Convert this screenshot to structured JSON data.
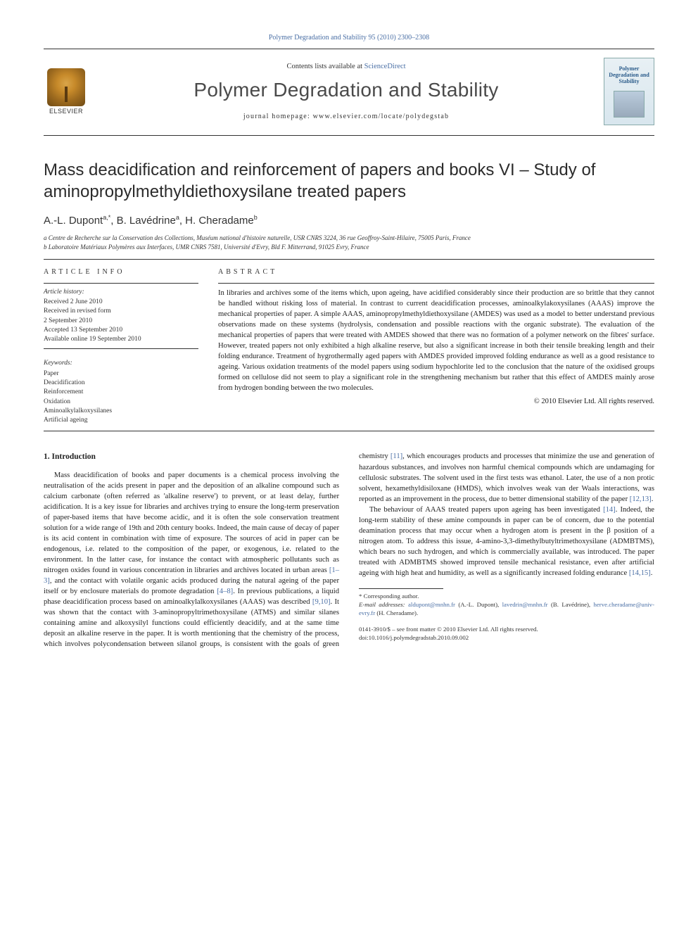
{
  "citation": "Polymer Degradation and Stability 95 (2010) 2300–2308",
  "header": {
    "contents_prefix": "Contents lists available at ",
    "contents_link": "ScienceDirect",
    "journal_name": "Polymer Degradation and Stability",
    "homepage_label": "journal homepage: www.elsevier.com/locate/polydegstab",
    "publisher_word": "ELSEVIER",
    "cover_title": "Polymer Degradation and Stability"
  },
  "article": {
    "title": "Mass deacidification and reinforcement of papers and books VI – Study of aminopropylmethyldiethoxysilane treated papers",
    "authors_html": "A.-L. Dupont",
    "author_sups": {
      "a1": "a,*",
      "a2": "a",
      "a3": "b"
    },
    "authors": {
      "a1": "A.-L. Dupont",
      "a2": "B. Lavédrine",
      "a3": "H. Cheradame"
    },
    "affiliations": {
      "a": "a Centre de Recherche sur la Conservation des Collections, Muséum national d'histoire naturelle, USR CNRS 3224, 36 rue Geoffroy-Saint-Hilaire, 75005 Paris, France",
      "b": "b Laboratoire Matériaux Polymères aux Interfaces, UMR CNRS 7581, Université d'Evry, Bld F. Mitterrand, 91025 Evry, France"
    }
  },
  "info": {
    "heading": "ARTICLE INFO",
    "history_label": "Article history:",
    "history": {
      "received": "Received 2 June 2010",
      "revised1": "Received in revised form",
      "revised2": "2 September 2010",
      "accepted": "Accepted 13 September 2010",
      "online": "Available online 19 September 2010"
    },
    "keywords_label": "Keywords:",
    "keywords": [
      "Paper",
      "Deacidification",
      "Reinforcement",
      "Oxidation",
      "Aminoalkylalkoxysilanes",
      "Artificial ageing"
    ]
  },
  "abstract": {
    "heading": "ABSTRACT",
    "text": "In libraries and archives some of the items which, upon ageing, have acidified considerably since their production are so brittle that they cannot be handled without risking loss of material. In contrast to current deacidification processes, aminoalkylakoxysilanes (AAAS) improve the mechanical properties of paper. A simple AAAS, aminopropylmethyldiethoxysilane (AMDES) was used as a model to better understand previous observations made on these systems (hydrolysis, condensation and possible reactions with the organic substrate). The evaluation of the mechanical properties of papers that were treated with AMDES showed that there was no formation of a polymer network on the fibres' surface. However, treated papers not only exhibited a high alkaline reserve, but also a significant increase in both their tensile breaking length and their folding endurance. Treatment of hygrothermally aged papers with AMDES provided improved folding endurance as well as a good resistance to ageing. Various oxidation treatments of the model papers using sodium hypochlorite led to the conclusion that the nature of the oxidised groups formed on cellulose did not seem to play a significant role in the strengthening mechanism but rather that this effect of AMDES mainly arose from hydrogen bonding between the two molecules.",
    "copyright": "© 2010 Elsevier Ltd. All rights reserved."
  },
  "body": {
    "section_heading": "1.  Introduction",
    "para1": "Mass deacidification of books and paper documents is a chemical process involving the neutralisation of the acids present in paper and the deposition of an alkaline compound such as calcium carbonate (often referred as 'alkaline reserve') to prevent, or at least delay, further acidification. It is a key issue for libraries and archives trying to ensure the long-term preservation of paper-based items that have become acidic, and it is often the sole conservation treatment solution for a wide range of 19th and 20th century books. Indeed, the main cause of decay of paper is its acid content in combination with time of exposure. The sources of acid in paper can be endogenous, i.e. related to the composition of the paper, or exogenous, i.e. related to the environment. In the latter case, for instance the contact with atmospheric pollutants such as nitrogen oxides found in various concentration in libraries and archives located in urban areas ",
    "ref1": "[1–3]",
    "para1b": ", and the contact with volatile organic acids produced during the natural ageing of the paper itself or by enclosure materials do promote degradation ",
    "ref2": "[4–8]",
    "para1c": ". In previous publications, a liquid phase deacidification process based on aminoalkylalkoxysilanes (AAAS) ",
    "para2a": "was described ",
    "ref3": "[9,10]",
    "para2b": ". It was shown that the contact with 3-aminopropyltrimethoxysilane (ATMS) and similar silanes containing amine and alkoxysilyl functions could efficiently deacidify, and at the same time deposit an alkaline reserve in the paper. It is worth mentioning that the chemistry of the process, which involves polycondensation between silanol groups, is consistent with the goals of green chemistry ",
    "ref4": "[11]",
    "para2c": ", which encourages products and processes that minimize the use and generation of hazardous substances, and involves non harmful chemical compounds which are undamaging for cellulosic substrates. The solvent used in the first tests was ethanol. Later, the use of a non protic solvent, hexamethyldisiloxane (HMDS), which involves weak van der Waals interactions, was reported as an improvement in the process, due to better dimensional stability of the paper ",
    "ref5": "[12,13]",
    "para2d": ".",
    "para3a": "The behaviour of AAAS treated papers upon ageing has been investigated ",
    "ref6": "[14]",
    "para3b": ". Indeed, the long-term stability of these amine compounds in paper can be of concern, due to the potential deamination process that may occur when a hydrogen atom is present in the β position of a nitrogen atom. To address this issue, 4-amino-3,3-dimethylbutyltrimethoxysilane (ADMBTMS), which bears no such hydrogen, and which is commercially available, was introduced. The paper treated with ADMBTMS showed improved tensile mechanical resistance, even after artificial ageing with high heat and humidity, as well as a significantly increased folding endurance ",
    "ref7": "[14,15]",
    "para3c": "."
  },
  "footnotes": {
    "corr": "* Corresponding author.",
    "emails_label": "E-mail addresses: ",
    "email1": "aldupont@mnhn.fr",
    "name1": " (A.-L. Dupont), ",
    "email2": "lavedrin@mnhn.fr",
    "name2": " (B. Lavédrine), ",
    "email3": "herve.cheradame@univ-evry.fr",
    "name3": " (H. Cheradame)."
  },
  "bottom": {
    "line1": "0141-3910/$ – see front matter © 2010 Elsevier Ltd. All rights reserved.",
    "line2": "doi:10.1016/j.polymdegradstab.2010.09.002"
  },
  "colors": {
    "link": "#4a6fa5",
    "text": "#1a1a1a",
    "rule": "#333333"
  }
}
